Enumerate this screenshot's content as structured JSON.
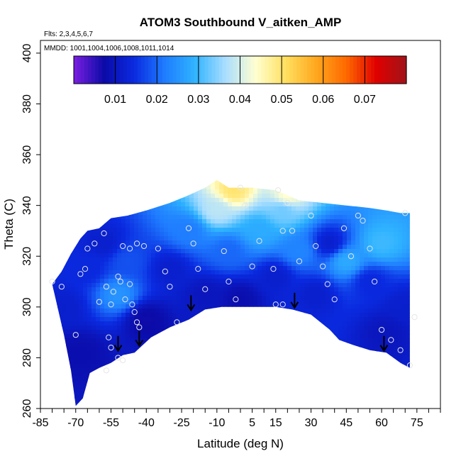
{
  "chart_data": {
    "type": "heatmap",
    "title": "ATOM3 Southbound V_aitken_AMP",
    "subtitle_flights": "Flts: 2,3,4,5,6,7",
    "subtitle_dates": "MMDD: 1001,1004,1006,1008,1011,1014",
    "xlabel": "Latitude (deg N)",
    "ylabel": "Theta (C)",
    "xlim": [
      -85,
      85
    ],
    "ylim": [
      260,
      405
    ],
    "x_ticks": [
      -85,
      -70,
      -55,
      -40,
      -25,
      -10,
      5,
      15,
      30,
      45,
      60,
      75
    ],
    "x_minor_step": 5,
    "y_ticks": [
      260,
      280,
      300,
      320,
      340,
      360,
      380,
      400
    ],
    "colorbar": {
      "range": [
        0,
        0.08
      ],
      "ticks": [
        0.01,
        0.02,
        0.03,
        0.04,
        0.05,
        0.06,
        0.07
      ],
      "colors": [
        "#7b1fe0",
        "#0b0ba8",
        "#0a2ae0",
        "#1f7cff",
        "#2fb3ff",
        "#a8ddff",
        "#ffffd2",
        "#ffe060",
        "#ffa81f",
        "#ff6a00",
        "#e00000",
        "#a0141a"
      ]
    },
    "envelope": {
      "top": [
        [
          -80,
          309
        ],
        [
          -76,
          314
        ],
        [
          -72,
          321
        ],
        [
          -68,
          327
        ],
        [
          -65,
          330
        ],
        [
          -60,
          331
        ],
        [
          -55,
          335
        ],
        [
          -48,
          336
        ],
        [
          -40,
          338
        ],
        [
          -30,
          341
        ],
        [
          -22,
          344
        ],
        [
          -15,
          347
        ],
        [
          -10,
          350
        ],
        [
          -5,
          347
        ],
        [
          5,
          347
        ],
        [
          15,
          346
        ],
        [
          25,
          342
        ],
        [
          35,
          341
        ],
        [
          45,
          340
        ],
        [
          55,
          339
        ],
        [
          62,
          338
        ],
        [
          68,
          337
        ],
        [
          72,
          337
        ]
      ],
      "bottom": [
        [
          -80,
          309
        ],
        [
          -75,
          289
        ],
        [
          -72,
          275
        ],
        [
          -70,
          261
        ],
        [
          -67,
          264
        ],
        [
          -64,
          274
        ],
        [
          -60,
          276
        ],
        [
          -55,
          278
        ],
        [
          -50,
          281
        ],
        [
          -45,
          282
        ],
        [
          -38,
          288
        ],
        [
          -30,
          292
        ],
        [
          -22,
          295
        ],
        [
          -15,
          299
        ],
        [
          -8,
          300
        ],
        [
          5,
          300
        ],
        [
          15,
          300
        ],
        [
          22,
          299
        ],
        [
          30,
          297
        ],
        [
          38,
          291
        ],
        [
          42,
          287
        ],
        [
          48,
          285
        ],
        [
          55,
          283
        ],
        [
          62,
          282
        ],
        [
          68,
          278
        ],
        [
          72,
          276
        ],
        [
          72,
          292
        ]
      ]
    },
    "field": [
      {
        "lat": -75,
        "theta": 300,
        "value": 0.012
      },
      {
        "lat": -68,
        "theta": 282,
        "value": 0.008
      },
      {
        "lat": -65,
        "theta": 315,
        "value": 0.014
      },
      {
        "lat": -58,
        "theta": 325,
        "value": 0.012
      },
      {
        "lat": -52,
        "theta": 305,
        "value": 0.025
      },
      {
        "lat": -48,
        "theta": 318,
        "value": 0.018
      },
      {
        "lat": -40,
        "theta": 295,
        "value": 0.007
      },
      {
        "lat": -30,
        "theta": 315,
        "value": 0.012
      },
      {
        "lat": -22,
        "theta": 330,
        "value": 0.022
      },
      {
        "lat": -15,
        "theta": 305,
        "value": 0.01
      },
      {
        "lat": -10,
        "theta": 338,
        "value": 0.038
      },
      {
        "lat": -5,
        "theta": 322,
        "value": 0.02
      },
      {
        "lat": 0,
        "theta": 303,
        "value": 0.008
      },
      {
        "lat": 8,
        "theta": 330,
        "value": 0.028
      },
      {
        "lat": 15,
        "theta": 312,
        "value": 0.012
      },
      {
        "lat": 18,
        "theta": 338,
        "value": 0.033
      },
      {
        "lat": 25,
        "theta": 322,
        "value": 0.023
      },
      {
        "lat": 32,
        "theta": 305,
        "value": 0.012
      },
      {
        "lat": 38,
        "theta": 325,
        "value": 0.012
      },
      {
        "lat": 45,
        "theta": 318,
        "value": 0.028
      },
      {
        "lat": 55,
        "theta": 310,
        "value": 0.014
      },
      {
        "lat": 60,
        "theta": 325,
        "value": 0.03
      },
      {
        "lat": 62,
        "theta": 290,
        "value": 0.01
      },
      {
        "lat": 70,
        "theta": 300,
        "value": 0.012
      },
      {
        "lat": -3,
        "theta": 346,
        "value": 0.05
      },
      {
        "lat": 20,
        "theta": 344,
        "value": 0.044
      }
    ],
    "samples": [
      [
        -80,
        310
      ],
      [
        -76,
        308
      ],
      [
        -70,
        289
      ],
      [
        -68,
        313
      ],
      [
        -66,
        315
      ],
      [
        -62,
        325
      ],
      [
        -65,
        323
      ],
      [
        -60,
        302
      ],
      [
        -58,
        329
      ],
      [
        -57,
        308
      ],
      [
        -55,
        301
      ],
      [
        -56,
        288
      ],
      [
        -55,
        284
      ],
      [
        -57,
        275
      ],
      [
        -54,
        306
      ],
      [
        -52,
        312
      ],
      [
        -51,
        310
      ],
      [
        -49,
        303
      ],
      [
        -47,
        309
      ],
      [
        -46,
        301
      ],
      [
        -45,
        298
      ],
      [
        -44,
        294
      ],
      [
        -43,
        292
      ],
      [
        -50,
        324
      ],
      [
        -47,
        323
      ],
      [
        -44,
        325
      ],
      [
        -41,
        324
      ],
      [
        -35,
        323
      ],
      [
        -32,
        314
      ],
      [
        -30,
        308
      ],
      [
        -27,
        294
      ],
      [
        -22,
        331
      ],
      [
        -20,
        325
      ],
      [
        -18,
        315
      ],
      [
        -15,
        307
      ],
      [
        -7,
        322
      ],
      [
        -5,
        310
      ],
      [
        0,
        347
      ],
      [
        2,
        340
      ],
      [
        -2,
        303
      ],
      [
        5,
        316
      ],
      [
        8,
        326
      ],
      [
        14,
        315
      ],
      [
        16,
        346
      ],
      [
        18,
        330
      ],
      [
        20,
        341
      ],
      [
        22,
        330
      ],
      [
        15,
        301
      ],
      [
        18,
        301
      ],
      [
        25,
        318
      ],
      [
        30,
        336
      ],
      [
        32,
        324
      ],
      [
        35,
        316
      ],
      [
        37,
        309
      ],
      [
        40,
        303
      ],
      [
        44,
        331
      ],
      [
        47,
        320
      ],
      [
        50,
        336
      ],
      [
        52,
        334
      ],
      [
        55,
        323
      ],
      [
        57,
        310
      ],
      [
        60,
        291
      ],
      [
        64,
        287
      ],
      [
        68,
        283
      ],
      [
        70,
        337
      ],
      [
        74,
        296
      ],
      [
        72,
        277
      ],
      [
        -52,
        280
      ],
      [
        -50,
        279
      ]
    ],
    "arrows": [
      [
        -52,
        283
      ],
      [
        -43,
        285
      ],
      [
        -21,
        299
      ],
      [
        23,
        300
      ],
      [
        61,
        283
      ]
    ]
  }
}
